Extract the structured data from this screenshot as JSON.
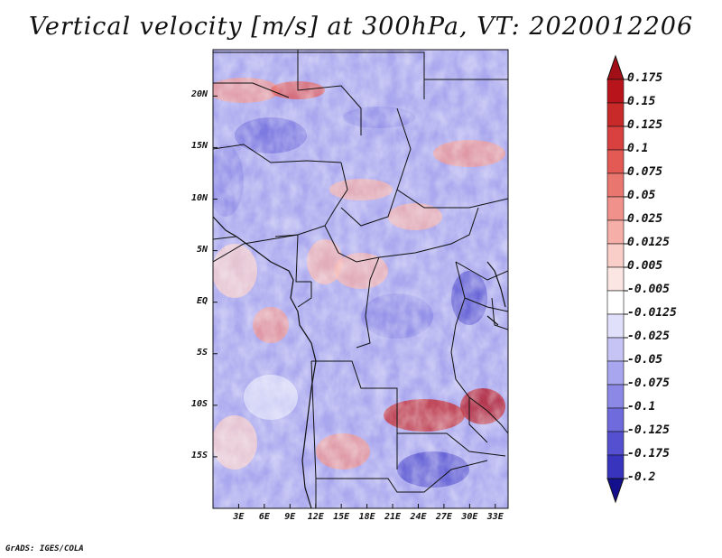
{
  "title": "Vertical velocity [m/s] at 300hPa, VT: 2020012206",
  "credit": "GrADS: IGES/COLA",
  "map": {
    "region": "Central Africa",
    "lat_range": [
      -20,
      24.5
    ],
    "lon_range": [
      0,
      34.5
    ],
    "lat_ticks": [
      {
        "value": 20,
        "label": "20N"
      },
      {
        "value": 15,
        "label": "15N"
      },
      {
        "value": 10,
        "label": "10N"
      },
      {
        "value": 5,
        "label": "5N"
      },
      {
        "value": 0,
        "label": "EQ"
      },
      {
        "value": -5,
        "label": "5S"
      },
      {
        "value": -10,
        "label": "10S"
      },
      {
        "value": -15,
        "label": "15S"
      }
    ],
    "lon_ticks": [
      {
        "value": 3,
        "label": "3E"
      },
      {
        "value": 6,
        "label": "6E"
      },
      {
        "value": 9,
        "label": "9E"
      },
      {
        "value": 12,
        "label": "12E"
      },
      {
        "value": 15,
        "label": "15E"
      },
      {
        "value": 18,
        "label": "18E"
      },
      {
        "value": 21,
        "label": "21E"
      },
      {
        "value": 24,
        "label": "24E"
      },
      {
        "value": 27,
        "label": "27E"
      },
      {
        "value": 30,
        "label": "30E"
      },
      {
        "value": 33,
        "label": "33E"
      }
    ]
  },
  "colorbar": {
    "levels": [
      {
        "label": "0.175",
        "color": "#b8141c"
      },
      {
        "label": "0.15",
        "color": "#c82a2a"
      },
      {
        "label": "0.125",
        "color": "#d94040"
      },
      {
        "label": "0.1",
        "color": "#e35a55"
      },
      {
        "label": "0.075",
        "color": "#ea7670"
      },
      {
        "label": "0.05",
        "color": "#f0928b"
      },
      {
        "label": "0.025",
        "color": "#f5afa8"
      },
      {
        "label": "0.0125",
        "color": "#f9cdc8"
      },
      {
        "label": "0.005",
        "color": "#fce6e3"
      },
      {
        "label": "-0.005",
        "color": "#ffffff"
      },
      {
        "label": "-0.0125",
        "color": "#e0e0fa"
      },
      {
        "label": "-0.025",
        "color": "#c5c4f5"
      },
      {
        "label": "-0.05",
        "color": "#a8a6ee"
      },
      {
        "label": "-0.075",
        "color": "#8c89e6"
      },
      {
        "label": "-0.1",
        "color": "#6f6bdc"
      },
      {
        "label": "-0.125",
        "color": "#5450cf"
      },
      {
        "label": "-0.175",
        "color": "#3934bd"
      },
      {
        "label": "-0.2",
        "color": "#2320a6"
      }
    ],
    "top_arrow_color": "#a30f16",
    "bottom_arrow_color": "#140f8c"
  }
}
